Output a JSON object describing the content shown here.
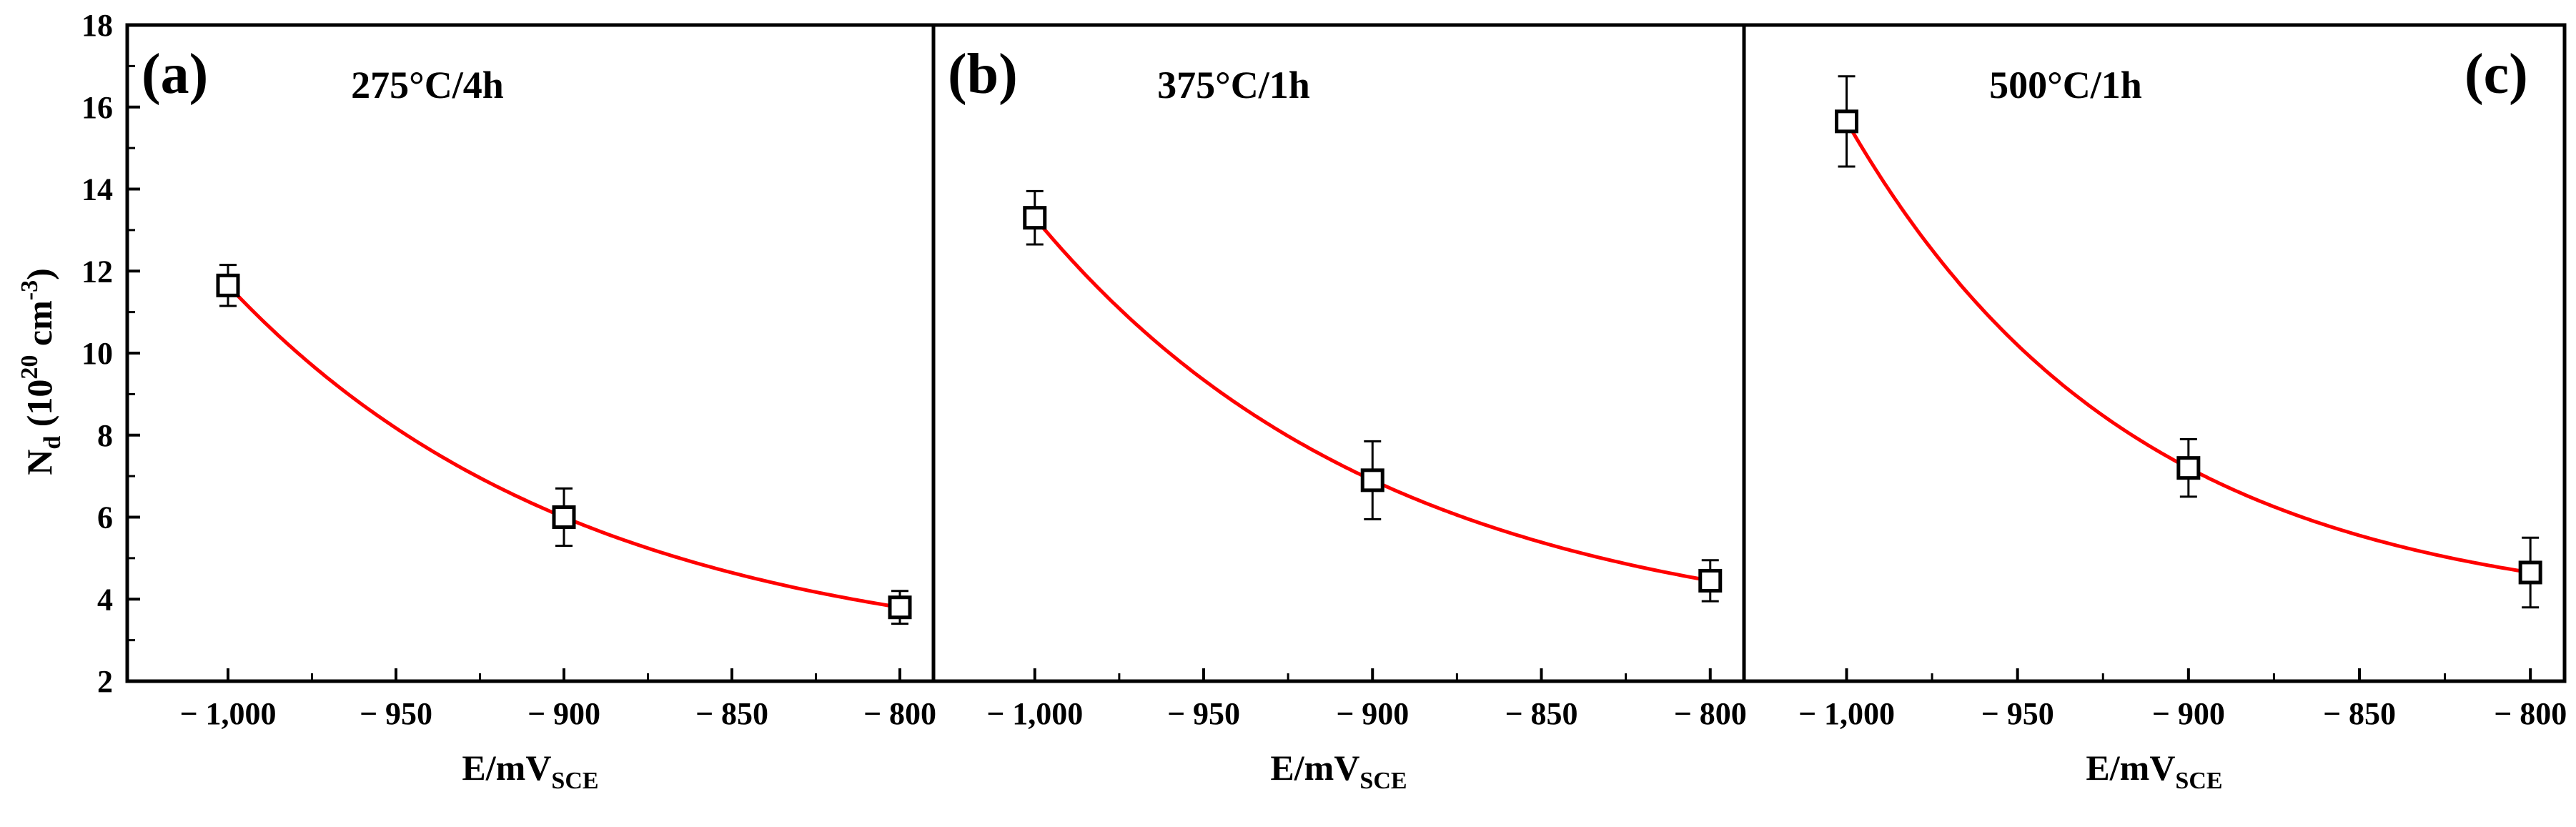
{
  "chart_data": {
    "type": "scatter",
    "shared_y": {
      "label_main": "N",
      "label_sub": "d",
      "label_paren_open": " (10",
      "label_exp": "20",
      "label_unit": " cm",
      "label_unit_exp": "-3",
      "label_paren_close": ")",
      "ylim": [
        2,
        18
      ],
      "ticks": [
        "2",
        "4",
        "6",
        "8",
        "10",
        "12",
        "14",
        "16",
        "18"
      ]
    },
    "x_tick_values": [
      -1000,
      -950,
      -900,
      -850,
      -800
    ],
    "x_tick_labels": [
      "− 1,000",
      "− 950",
      "− 900",
      "− 850",
      "− 800"
    ],
    "xlim": [
      -1030,
      -790
    ],
    "xlabel_main": "E/mV",
    "xlabel_sub": "SCE",
    "fit_color": "#ff0000",
    "marker_color": "#000000",
    "panels": [
      {
        "letter": "(a)",
        "title": "275°C/4h",
        "x": [
          -1000,
          -900,
          -800
        ],
        "y": [
          11.65,
          6.0,
          3.8
        ],
        "err": [
          0.5,
          0.7,
          0.4
        ]
      },
      {
        "letter": "(b)",
        "title": "375°C/1h",
        "x": [
          -1000,
          -900,
          -800
        ],
        "y": [
          13.3,
          6.9,
          4.45
        ],
        "err": [
          0.65,
          0.95,
          0.5
        ]
      },
      {
        "letter": "(c)",
        "title": "500°C/1h",
        "x": [
          -1000,
          -900,
          -800
        ],
        "y": [
          15.65,
          7.2,
          4.65
        ],
        "err": [
          1.1,
          0.7,
          0.85
        ]
      }
    ]
  }
}
